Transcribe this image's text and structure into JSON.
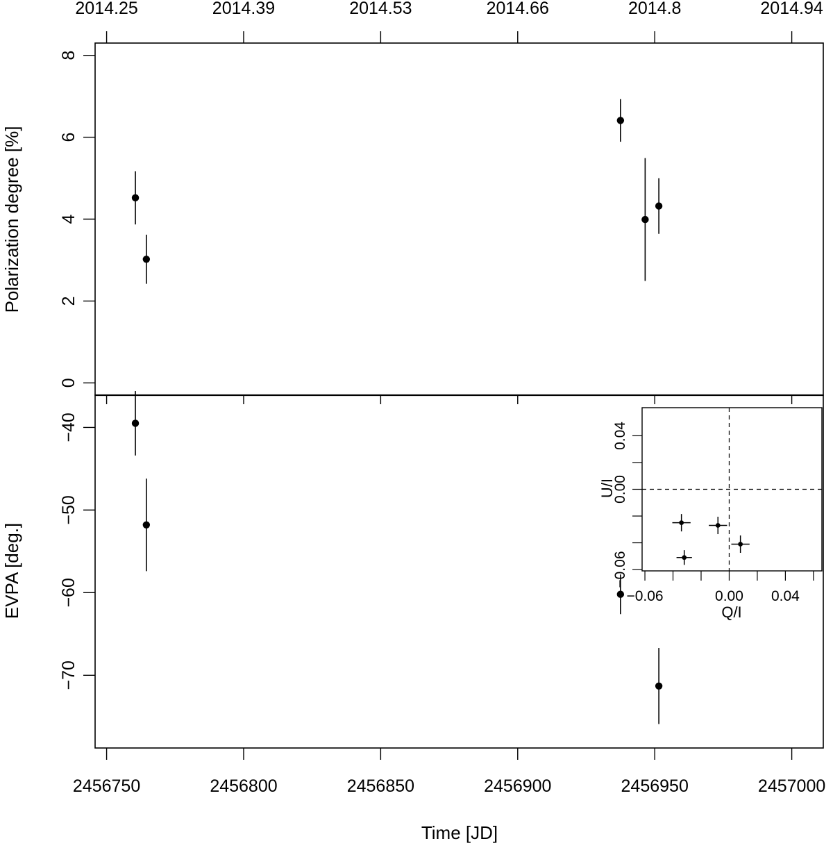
{
  "chart_data": [
    {
      "type": "scatter",
      "panel": "top",
      "title": "",
      "xlabel": "Time [JD]",
      "ylabel": "Polarization degree [%]",
      "xlim": [
        2456745.8,
        2457011.5
      ],
      "ylim": [
        -0.3,
        8.3
      ],
      "yticks": [
        0,
        2,
        4,
        6,
        8
      ],
      "xticks": [
        2456750,
        2456800,
        2456850,
        2456900,
        2456950,
        2457000
      ],
      "top_axis_ticks": [
        2456750,
        2456800,
        2456850,
        2456900,
        2456950,
        2457000
      ],
      "top_axis_labels": [
        "2014.25",
        "2014.39",
        "2014.53",
        "2014.66",
        "2014.8",
        "2014.94"
      ],
      "x": [
        2456760.5,
        2456764.5,
        2456937.5,
        2456946.5,
        2456951.5
      ],
      "y": [
        4.52,
        3.02,
        6.41,
        3.99,
        4.32
      ],
      "yerr": [
        0.65,
        0.6,
        0.52,
        1.5,
        0.68
      ],
      "grid": false
    },
    {
      "type": "scatter",
      "panel": "bottom",
      "title": "",
      "xlabel": "Time [JD]",
      "ylabel": "EVPA [deg.]",
      "xlim": [
        2456745.8,
        2457011.5
      ],
      "ylim": [
        -78.8,
        -36.1
      ],
      "yticks": [
        -70,
        -60,
        -50,
        -40
      ],
      "xticks": [
        2456750,
        2456800,
        2456850,
        2456900,
        2456950,
        2457000
      ],
      "xtick_labels": [
        "2456750",
        "2456800",
        "2456850",
        "2456900",
        "2456950",
        "2457000"
      ],
      "x": [
        2456760.5,
        2456764.5,
        2456937.5,
        2456951.5
      ],
      "y": [
        -39.5,
        -51.8,
        -60.2,
        -71.3
      ],
      "yerr": [
        3.9,
        5.6,
        2.4,
        4.6
      ],
      "grid": false
    },
    {
      "type": "scatter",
      "panel": "inset",
      "title": "",
      "xlabel": "Q/I",
      "ylabel": "U/I",
      "xlim": [
        -0.062,
        0.066
      ],
      "ylim": [
        -0.061,
        0.061
      ],
      "xticks": [
        -0.06,
        -0.04,
        -0.02,
        0.0,
        0.02,
        0.04,
        0.06
      ],
      "xtick_labels": [
        "−0.06",
        "",
        "",
        "0.00",
        "",
        "0.04",
        ""
      ],
      "yticks": [
        -0.06,
        -0.04,
        -0.02,
        0.0,
        0.02,
        0.04
      ],
      "ytick_labels": [
        "−0.06",
        "",
        "",
        "0.00",
        "",
        "0.04"
      ],
      "reference_lines": {
        "x": 0,
        "y": 0,
        "style": "dashed"
      },
      "x": [
        -0.034,
        -0.008,
        0.008,
        -0.032
      ],
      "y": [
        -0.025,
        -0.027,
        -0.041,
        -0.051
      ],
      "xerr": [
        0.0065,
        0.0065,
        0.0065,
        0.0055
      ],
      "yerr": [
        0.0065,
        0.0065,
        0.0065,
        0.0055
      ],
      "grid": false
    }
  ]
}
